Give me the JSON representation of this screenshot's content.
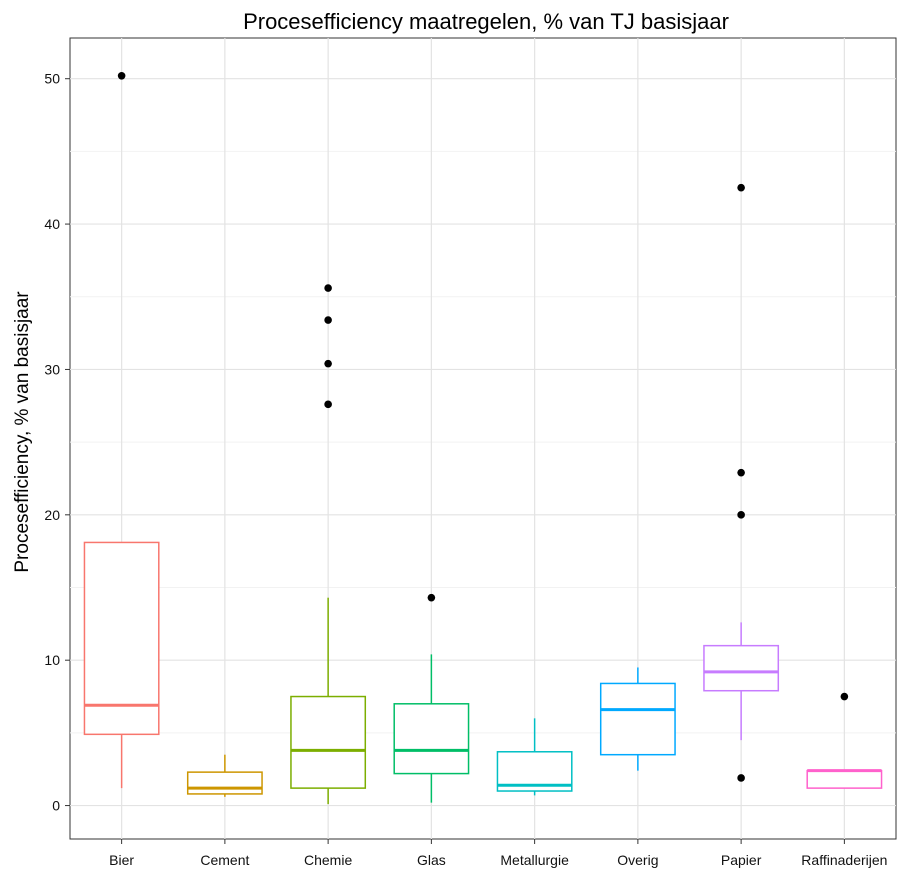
{
  "chart_data": {
    "type": "boxplot",
    "title": "Procesefficiency maatregelen, % van TJ basisjaar",
    "xlabel": "",
    "ylabel": "Procesefficiency, % van basisjaar",
    "ylim": [
      -2.3,
      52.8
    ],
    "yticks": [
      0,
      10,
      20,
      30,
      40,
      50
    ],
    "grid": true,
    "legend": "none",
    "categories": [
      "Bier",
      "Cement",
      "Chemie",
      "Glas",
      "Metallurgie",
      "Overig",
      "Papier",
      "Raffinaderijen"
    ],
    "boxes": [
      {
        "category": "Bier",
        "color": "#F8766D",
        "whisker_low": 1.2,
        "q1": 4.9,
        "median": 6.9,
        "q3": 18.1,
        "whisker_high": 18.1,
        "outliers": [
          50.2
        ]
      },
      {
        "category": "Cement",
        "color": "#CD9600",
        "whisker_low": 0.6,
        "q1": 0.8,
        "median": 1.2,
        "q3": 2.3,
        "whisker_high": 3.5,
        "outliers": []
      },
      {
        "category": "Chemie",
        "color": "#7CAE00",
        "whisker_low": 0.1,
        "q1": 1.2,
        "median": 3.8,
        "q3": 7.5,
        "whisker_high": 14.3,
        "outliers": [
          27.6,
          30.4,
          33.4,
          35.6
        ]
      },
      {
        "category": "Glas",
        "color": "#00BE67",
        "whisker_low": 0.2,
        "q1": 2.2,
        "median": 3.8,
        "q3": 7.0,
        "whisker_high": 10.4,
        "outliers": [
          14.3
        ]
      },
      {
        "category": "Metallurgie",
        "color": "#00BFC4",
        "whisker_low": 0.7,
        "q1": 1.0,
        "median": 1.4,
        "q3": 3.7,
        "whisker_high": 6.0,
        "outliers": []
      },
      {
        "category": "Overig",
        "color": "#00A9FF",
        "whisker_low": 2.4,
        "q1": 3.5,
        "median": 6.6,
        "q3": 8.4,
        "whisker_high": 9.5,
        "outliers": []
      },
      {
        "category": "Papier",
        "color": "#C77CFF",
        "whisker_low": 4.5,
        "q1": 7.9,
        "median": 9.2,
        "q3": 11.0,
        "whisker_high": 12.6,
        "outliers": [
          1.9,
          20.0,
          22.9,
          42.5
        ]
      },
      {
        "category": "Raffinaderijen",
        "color": "#FF61CC",
        "whisker_low": 1.2,
        "q1": 1.2,
        "median": 2.4,
        "q3": 2.4,
        "whisker_high": 2.4,
        "outliers": [
          7.5
        ]
      }
    ]
  }
}
